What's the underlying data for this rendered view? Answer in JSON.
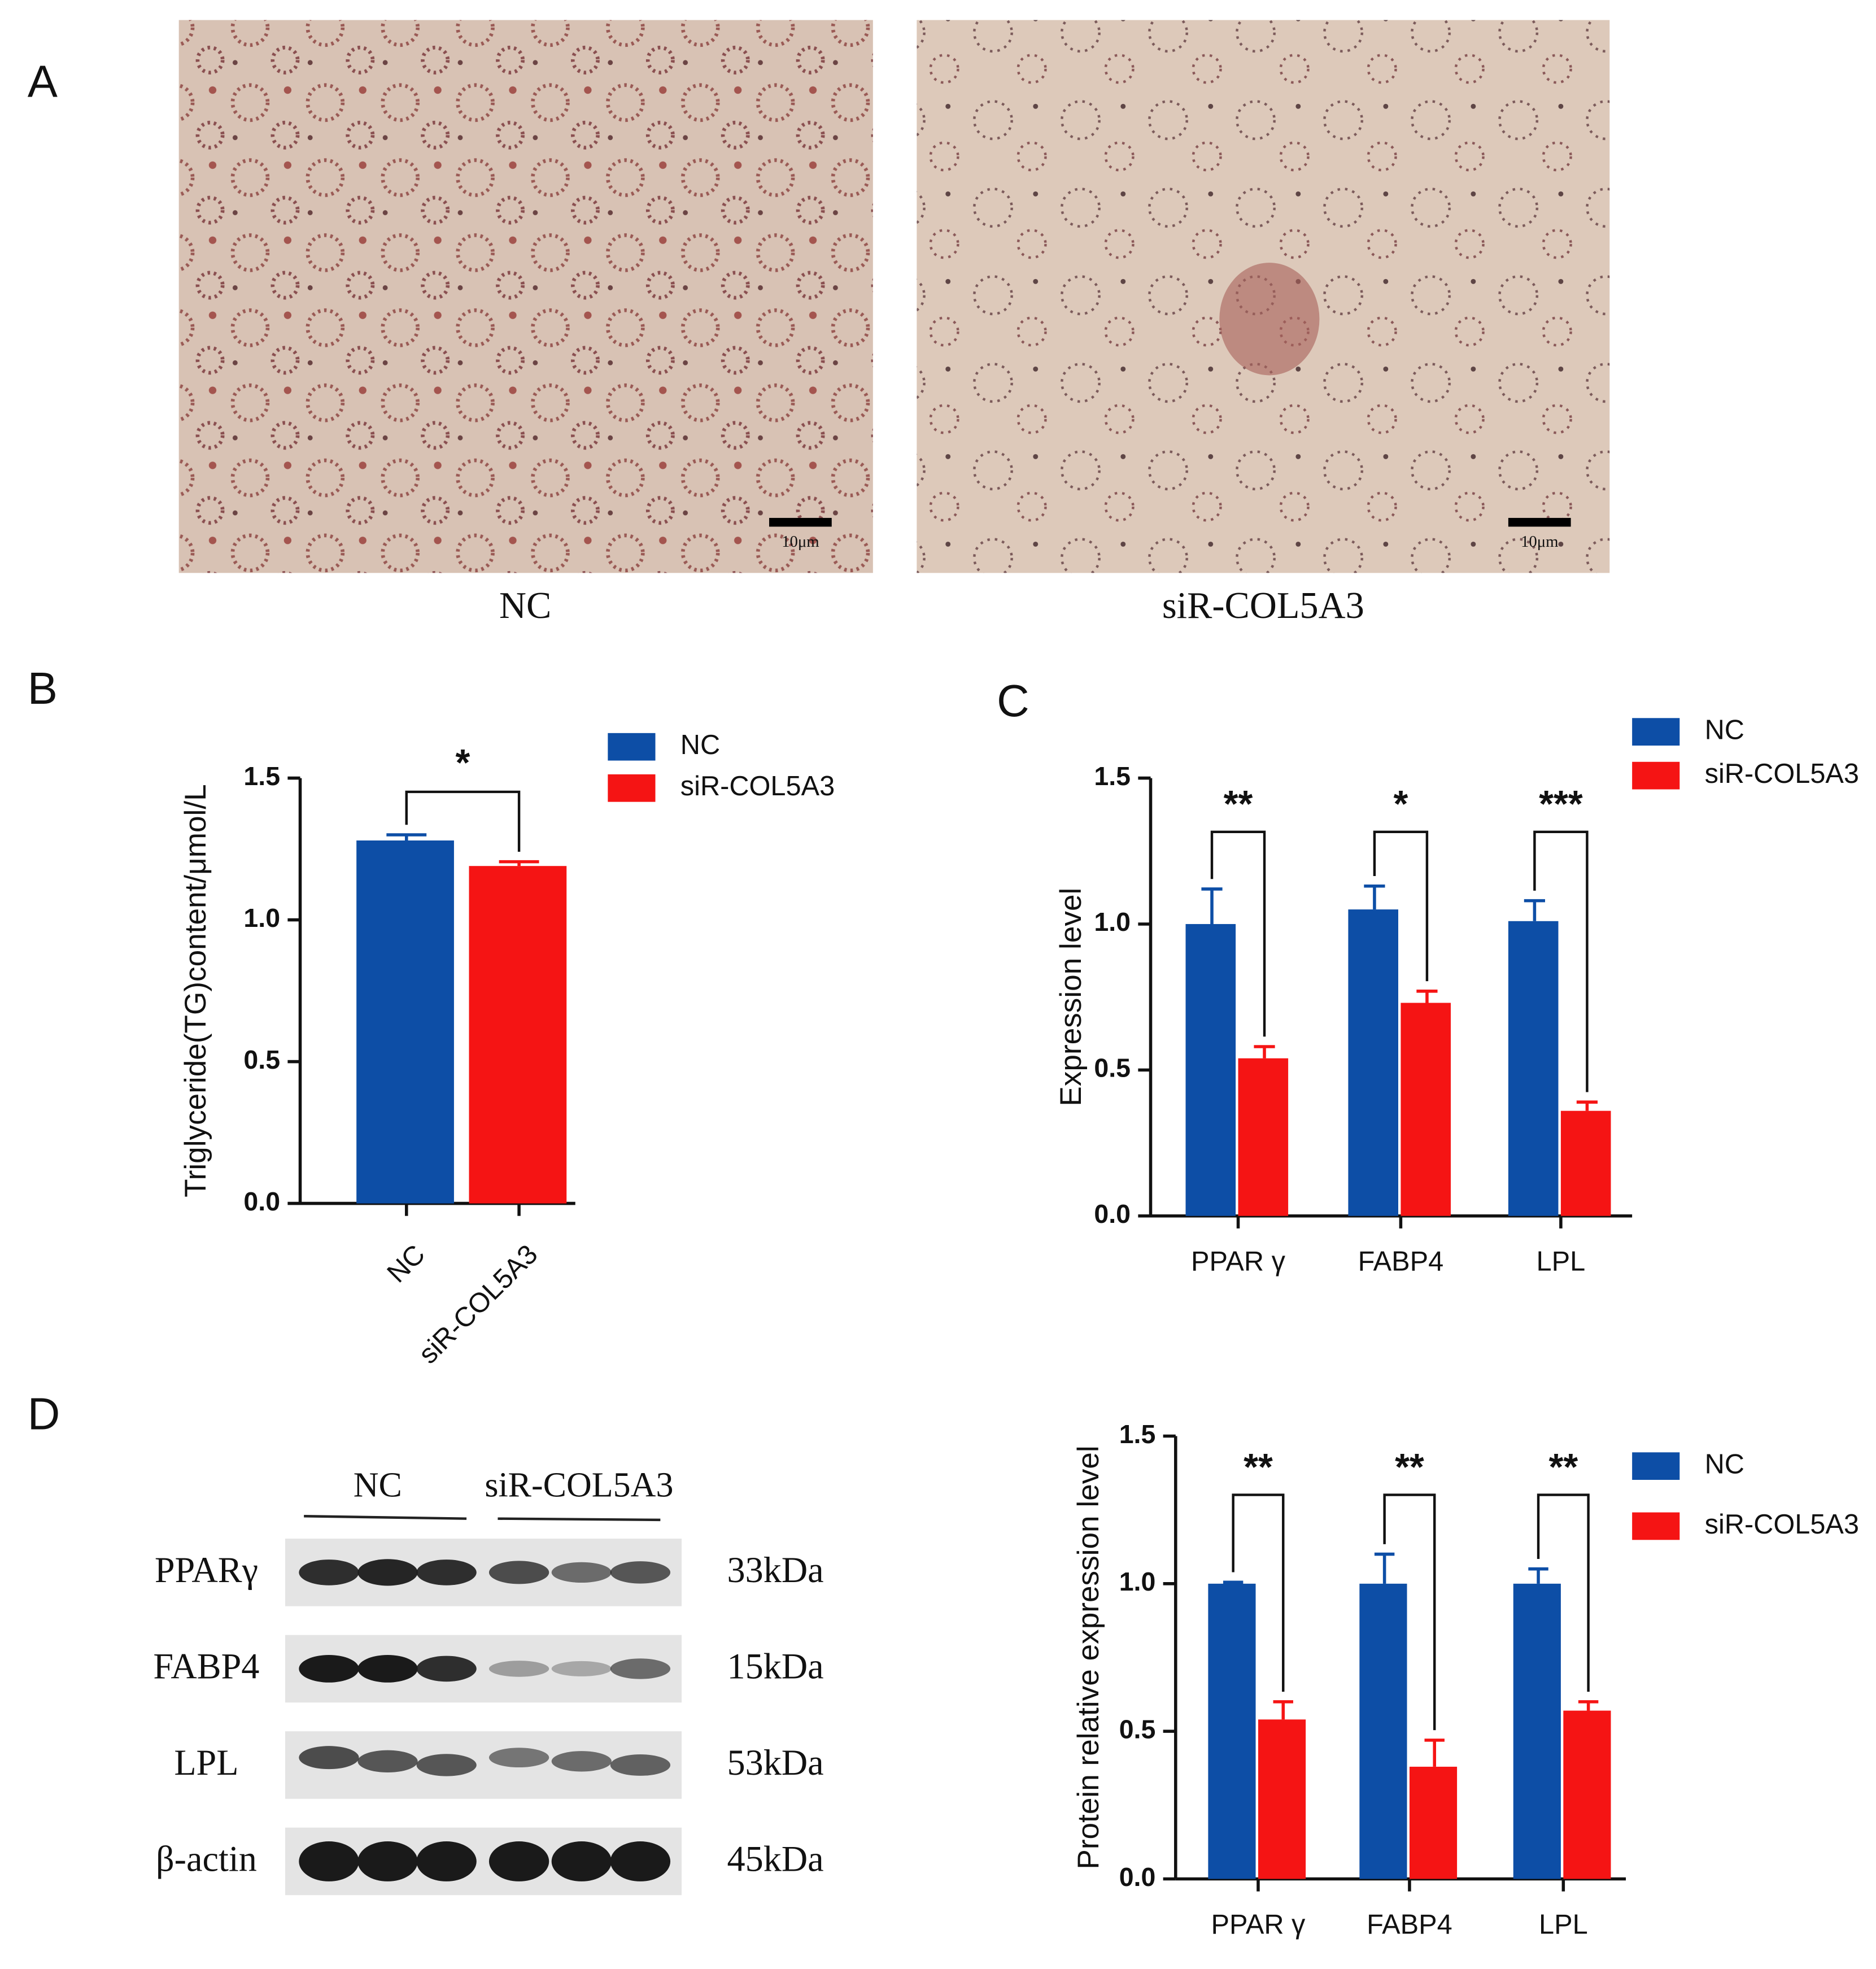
{
  "panel_labels": [
    "A",
    "B",
    "C",
    "D"
  ],
  "images": [
    {
      "label": "NC",
      "scale_bar": "10μm"
    },
    {
      "label": "siR-COL5A3",
      "scale_bar": "10μm"
    }
  ],
  "blot": {
    "groups": [
      "NC",
      "siR-COL5A3"
    ],
    "proteins": [
      {
        "name": "PPARγ",
        "size": "33kDa"
      },
      {
        "name": "FABP4",
        "size": "15kDa"
      },
      {
        "name": "LPL",
        "size": "53kDa"
      },
      {
        "name": "β-actin",
        "size": "45kDa"
      }
    ]
  },
  "chart_data": [
    {
      "type": "bar",
      "y_label": "Triglyceride(TG)content/μmol/L",
      "categories": [
        "NC",
        "siR-COL5A3"
      ],
      "series": [
        {
          "name": "NC",
          "color": "#0d4ea6",
          "values": [
            1.28,
            null
          ],
          "errors": [
            0.02,
            null
          ]
        },
        {
          "name": "siR-COL5A3",
          "color": "#f51414",
          "values": [
            null,
            1.19
          ],
          "errors": [
            null,
            0.015
          ]
        }
      ],
      "significance": "*",
      "ylim": [
        0,
        1.5
      ],
      "yticks": [
        {
          "value": 0,
          "label": "0.0"
        },
        0.5,
        {
          "value": 1,
          "label": "1.0"
        },
        1.5
      ],
      "grid": false
    },
    {
      "type": "bar",
      "y_label": "Expression level",
      "categories": [
        "PPAR γ",
        "FABP4",
        "LPL"
      ],
      "series": [
        {
          "name": "NC",
          "color": "#0d4ea6",
          "values": [
            1.0,
            1.05,
            1.01
          ],
          "errors": [
            0.12,
            0.08,
            0.07
          ]
        },
        {
          "name": "siR-COL5A3",
          "color": "#f51414",
          "values": [
            0.54,
            0.73,
            0.36
          ],
          "errors": [
            0.04,
            0.04,
            0.03
          ]
        }
      ],
      "significance": [
        "**",
        "*",
        "***"
      ],
      "ylim": [
        0,
        1.5
      ],
      "yticks": [
        {
          "value": 0,
          "label": "0.0"
        },
        0.5,
        {
          "value": 1,
          "label": "1.0"
        },
        1.5
      ],
      "grid": false
    },
    {
      "type": "bar",
      "y_label": "Protein relative expression level",
      "categories": [
        "PPAR γ",
        "FABP4",
        "LPL"
      ],
      "series": [
        {
          "name": "NC",
          "color": "#0d4ea6",
          "values": [
            1.0,
            1.0,
            1.0
          ],
          "errors": [
            0.005,
            0.1,
            0.05
          ]
        },
        {
          "name": "siR-COL5A3",
          "color": "#f51414",
          "values": [
            0.54,
            0.38,
            0.57
          ],
          "errors": [
            0.06,
            0.09,
            0.03
          ]
        }
      ],
      "significance": [
        "**",
        "**",
        "**"
      ],
      "ylim": [
        0,
        1.5
      ],
      "yticks": [
        {
          "value": 0,
          "label": "0.0"
        },
        0.5,
        {
          "value": 1,
          "label": "1.0"
        },
        1.5
      ],
      "grid": false
    }
  ]
}
